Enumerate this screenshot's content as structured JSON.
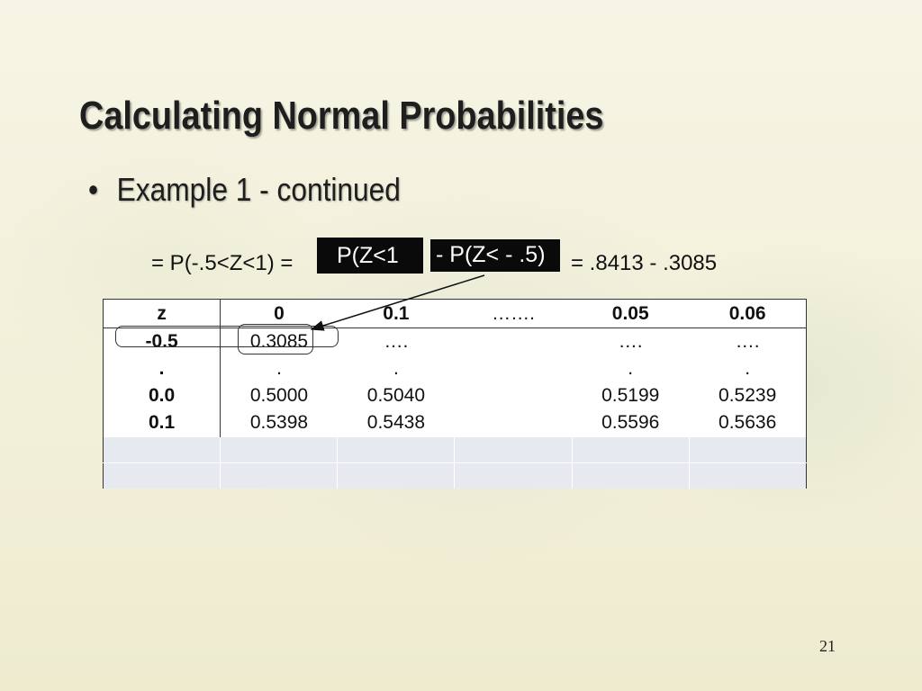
{
  "slide": {
    "title": "Calculating Normal Probabilities",
    "bullet": "Example 1 - continued",
    "bullet_marker": "•",
    "equation_left": "= P(-.5<Z<1) =",
    "box_1": "P(Z<1",
    "box_2": "- P(Z< - .5)",
    "equation_right": "= .8413 - .3085",
    "page_number": "21"
  },
  "table": {
    "headers": [
      "z",
      "0",
      "0.1",
      "…….",
      "0.05",
      "0.06"
    ],
    "rows": [
      [
        "-0.5",
        "0.3085",
        "….",
        "",
        "….",
        "…."
      ],
      [
        ".",
        ".",
        ".",
        "",
        ".",
        "."
      ],
      [
        "0.0",
        "0.5000",
        "0.5040",
        "",
        "0.5199",
        "0.5239"
      ],
      [
        "0.1",
        "0.5398",
        "0.5438",
        "",
        "0.5596",
        "0.5636"
      ]
    ]
  }
}
